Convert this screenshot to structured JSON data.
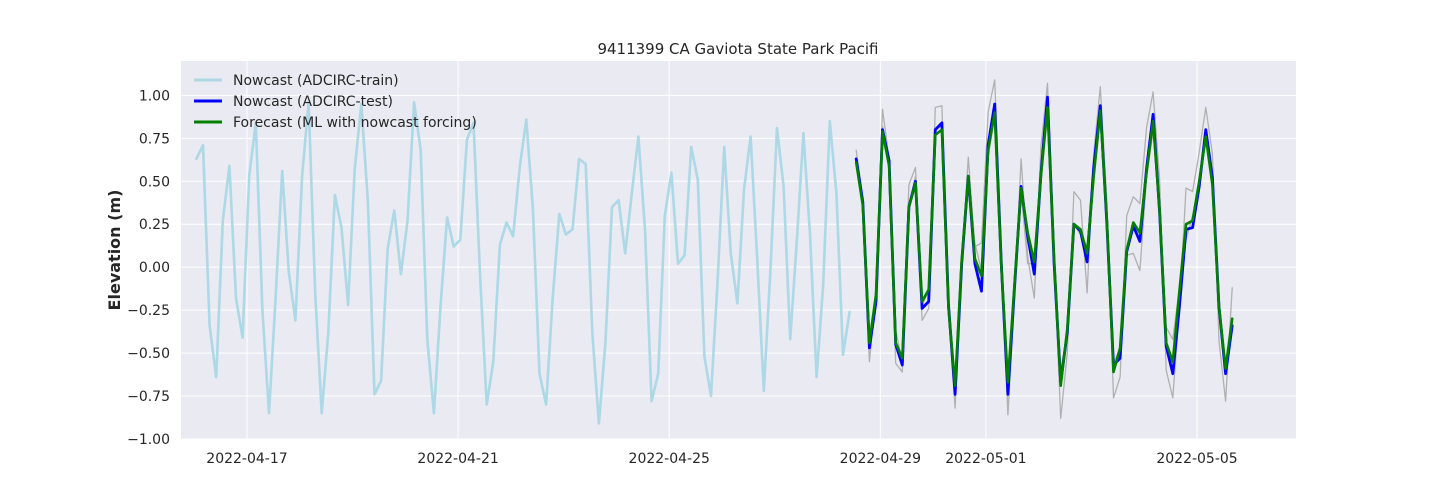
{
  "chart_data": {
    "type": "line",
    "title": "9411399 CA Gaviota State Park Pacifi",
    "xlabel": "",
    "ylabel": "Elevation (m)",
    "xlim": [
      "2022-04-15T18:00",
      "2022-05-06T21:00"
    ],
    "ylim": [
      -1.0,
      1.2
    ],
    "x_ticks": [
      "2022-04-17",
      "2022-04-21",
      "2022-04-25",
      "2022-04-29",
      "2022-05-01",
      "2022-05-05"
    ],
    "y_ticks": [
      1.0,
      0.75,
      0.5,
      0.25,
      0.0,
      -0.25,
      -0.5,
      -0.75,
      -1.0
    ],
    "y_tick_labels": [
      "1.00",
      "0.75",
      "0.50",
      "0.25",
      "0.00",
      "−0.25",
      "−0.50",
      "−0.75",
      "−1.00"
    ],
    "grid": true,
    "background": "#eaeaf2",
    "legend_position": "upper-left",
    "series": [
      {
        "name": "Nowcast (ADCIRC-train)",
        "color": "#add8e6",
        "x_start": "2022-04-16T01:00",
        "step_hours": 3,
        "values": [
          0.63,
          0.71,
          -0.34,
          -0.64,
          0.27,
          0.59,
          -0.18,
          -0.41,
          0.53,
          0.84,
          -0.25,
          -0.85,
          -0.18,
          0.56,
          -0.03,
          -0.31,
          0.52,
          0.96,
          -0.15,
          -0.85,
          -0.38,
          0.42,
          0.23,
          -0.22,
          0.57,
          0.95,
          0.38,
          -0.74,
          -0.66,
          0.11,
          0.33,
          -0.04,
          0.27,
          0.96,
          0.68,
          -0.42,
          -0.85,
          -0.23,
          0.29,
          0.12,
          0.16,
          0.74,
          0.84,
          -0.05,
          -0.8,
          -0.55,
          0.13,
          0.26,
          0.18,
          0.58,
          0.86,
          0.34,
          -0.62,
          -0.8,
          -0.18,
          0.31,
          0.19,
          0.22,
          0.63,
          0.6,
          -0.38,
          -0.91,
          -0.44,
          0.35,
          0.39,
          0.08,
          0.43,
          0.76,
          0.22,
          -0.78,
          -0.62,
          0.3,
          0.55,
          0.02,
          0.07,
          0.7,
          0.51,
          -0.52,
          -0.75,
          -0.08,
          0.7,
          0.08,
          -0.21,
          0.45,
          0.76,
          0.05,
          -0.72,
          -0.02,
          0.81,
          0.47,
          -0.42,
          0.15,
          0.78,
          0.19,
          -0.64,
          -0.1,
          0.85,
          0.43,
          -0.51,
          -0.26
        ]
      },
      {
        "name": "",
        "color": "#b0b0b0",
        "x_start": "2022-04-28T13:00",
        "step_hours": 3,
        "values": [
          0.68,
          0.4,
          -0.55,
          -0.15,
          0.92,
          0.63,
          -0.56,
          -0.61,
          0.48,
          0.58,
          -0.31,
          -0.24,
          0.93,
          0.94,
          -0.26,
          -0.82,
          0.02,
          0.64,
          0.12,
          0.14,
          0.9,
          1.09,
          0.13,
          -0.86,
          -0.18,
          0.63,
          0.06,
          -0.18,
          0.7,
          1.07,
          0.04,
          -0.88,
          -0.5,
          0.44,
          0.39,
          -0.15,
          0.66,
          1.05,
          0.38,
          -0.76,
          -0.64,
          0.3,
          0.41,
          0.37,
          0.81,
          1.02,
          0.51,
          -0.6,
          -0.76,
          -0.24,
          0.46,
          0.44,
          0.67,
          0.93,
          0.66,
          -0.43,
          -0.78,
          -0.12
        ]
      },
      {
        "name": "",
        "color": "#b0b0b0",
        "x_start": "2022-04-28T13:00",
        "step_hours": 3,
        "values": [
          0.6,
          0.35,
          -0.42,
          -0.22,
          0.82,
          0.64,
          -0.37,
          -0.55,
          0.36,
          0.53,
          -0.22,
          -0.14,
          0.8,
          0.82,
          -0.22,
          -0.72,
          0.02,
          0.5,
          0.14,
          -0.02,
          0.64,
          0.88,
          0.0,
          -0.62,
          -0.1,
          0.44,
          0.02,
          0.02,
          0.55,
          0.92,
          0.05,
          -0.6,
          -0.37,
          0.25,
          0.19,
          0.12,
          0.58,
          0.9,
          0.24,
          -0.56,
          -0.47,
          0.07,
          0.08,
          -0.02,
          0.52,
          0.79,
          0.3,
          -0.35,
          -0.42,
          -0.12,
          0.16,
          0.3,
          0.46,
          0.75,
          0.5,
          -0.3,
          -0.56,
          -0.33
        ]
      },
      {
        "name": "Nowcast (ADCIRC-test)",
        "color": "#0000ff",
        "x_start": "2022-04-28T13:00",
        "step_hours": 3,
        "values": [
          0.63,
          0.38,
          -0.47,
          -0.2,
          0.8,
          0.62,
          -0.45,
          -0.57,
          0.35,
          0.5,
          -0.24,
          -0.2,
          0.8,
          0.84,
          -0.22,
          -0.74,
          0.02,
          0.53,
          0.02,
          -0.14,
          0.71,
          0.95,
          0.02,
          -0.74,
          -0.12,
          0.47,
          0.18,
          -0.04,
          0.54,
          0.99,
          0.02,
          -0.67,
          -0.38,
          0.25,
          0.21,
          0.03,
          0.58,
          0.94,
          0.25,
          -0.57,
          -0.53,
          0.09,
          0.24,
          0.15,
          0.57,
          0.89,
          0.32,
          -0.46,
          -0.62,
          -0.23,
          0.22,
          0.23,
          0.47,
          0.8,
          0.52,
          -0.23,
          -0.62,
          -0.34
        ]
      },
      {
        "name": "Forecast (ML with nowcast forcing)",
        "color": "#008000",
        "x_start": "2022-04-28T13:00",
        "step_hours": 3,
        "values": [
          0.61,
          0.36,
          -0.44,
          -0.16,
          0.79,
          0.59,
          -0.44,
          -0.53,
          0.35,
          0.49,
          -0.2,
          -0.13,
          0.77,
          0.8,
          -0.24,
          -0.69,
          0.04,
          0.53,
          0.05,
          -0.05,
          0.68,
          0.9,
          0.01,
          -0.67,
          -0.1,
          0.46,
          0.2,
          0.03,
          0.53,
          0.93,
          0.05,
          -0.69,
          -0.36,
          0.25,
          0.22,
          0.08,
          0.53,
          0.91,
          0.27,
          -0.61,
          -0.47,
          0.1,
          0.26,
          0.2,
          0.55,
          0.85,
          0.33,
          -0.44,
          -0.55,
          -0.14,
          0.25,
          0.27,
          0.5,
          0.76,
          0.48,
          -0.23,
          -0.59,
          -0.3
        ]
      }
    ]
  }
}
